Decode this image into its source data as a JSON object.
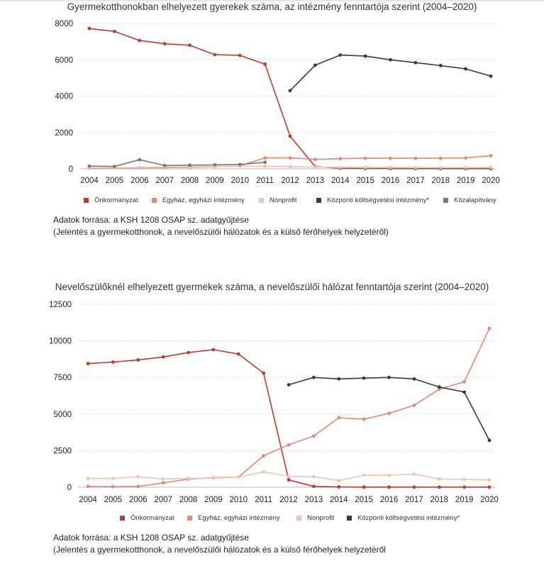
{
  "colors": {
    "onkormanyzat": "#c0392b",
    "egyhaz": "#e08a73",
    "nonprofit": "#f2c3b2",
    "kozponti": "#3a3a3a",
    "kozalapitvany": "#777777"
  },
  "chart_data": [
    {
      "type": "line",
      "title": "Gyermekotthonokban elhelyezett gyerekek száma, az intézmény fenntartója szerint (2004–2020)",
      "xlabel": "",
      "ylabel": "",
      "categories": [
        "2004",
        "2005",
        "2006",
        "2007",
        "2008",
        "2009",
        "2010",
        "2011",
        "2012",
        "2013",
        "2014",
        "2015",
        "2016",
        "2017",
        "2018",
        "2019",
        "2020"
      ],
      "ylim": [
        0,
        8000
      ],
      "yticks": [
        0,
        2000,
        4000,
        6000,
        8000
      ],
      "yticklabels": [
        "0",
        "2000",
        "4000",
        "6000",
        "8000"
      ],
      "grid": true,
      "legend_position": "bottom",
      "series": [
        {
          "name": "Önkormányzat",
          "color": "#c0392b",
          "values": [
            7720,
            7560,
            7060,
            6880,
            6800,
            6280,
            6240,
            5760,
            1800,
            120,
            30,
            20,
            15,
            12,
            12,
            10,
            10
          ]
        },
        {
          "name": "Egyház, egyházi intézmény",
          "color": "#e08a73",
          "values": [
            30,
            40,
            50,
            60,
            80,
            120,
            160,
            600,
            600,
            520,
            560,
            580,
            580,
            580,
            580,
            600,
            720
          ]
        },
        {
          "name": "Nonprofit",
          "color": "#f2c3b2",
          "values": [
            60,
            60,
            80,
            100,
            110,
            130,
            140,
            140,
            120,
            90,
            80,
            80,
            80,
            70,
            70,
            70,
            80
          ]
        },
        {
          "name": "Központi költségvetési intézmény*",
          "color": "#3a3a3a",
          "values": [
            null,
            null,
            null,
            null,
            null,
            null,
            null,
            null,
            4300,
            5700,
            6260,
            6200,
            6000,
            5840,
            5680,
            5500,
            5100
          ]
        },
        {
          "name": "Közalapítvány",
          "color": "#777777",
          "values": [
            150,
            130,
            500,
            180,
            200,
            220,
            240,
            360,
            null,
            null,
            null,
            null,
            null,
            null,
            null,
            null,
            null
          ]
        }
      ],
      "source_lines": [
        "Adatok forrása: a KSH 1208 OSAP sz. adatgyűjtése",
        "(Jelentés a gyermekotthonok, a nevelőszülői hálózatok és a külső férőhelyek helyzetéről)"
      ]
    },
    {
      "type": "line",
      "title": "Nevelőszülőknél elhelyezett gyermekek száma, a nevelőszülői hálózat fenntartója szerint (2004–2020)",
      "xlabel": "",
      "ylabel": "",
      "categories": [
        "2004",
        "2005",
        "2006",
        "2007",
        "2008",
        "2009",
        "2010",
        "2011",
        "2012",
        "2013",
        "2014",
        "2015",
        "2016",
        "2017",
        "2018",
        "2019",
        "2020"
      ],
      "ylim": [
        0,
        12500
      ],
      "yticks": [
        0,
        2500,
        5000,
        7500,
        10000,
        12500
      ],
      "yticklabels": [
        "0",
        "2500",
        "5000",
        "7500",
        "10000",
        "12500"
      ],
      "grid": true,
      "legend_position": "bottom",
      "series": [
        {
          "name": "Önkormányzat",
          "color": "#c0392b",
          "values": [
            8450,
            8550,
            8700,
            8900,
            9200,
            9400,
            9100,
            7800,
            500,
            60,
            20,
            10,
            10,
            10,
            10,
            10,
            10
          ]
        },
        {
          "name": "Egyház, egyházi intézmény",
          "color": "#e08a73",
          "values": [
            60,
            40,
            60,
            300,
            550,
            650,
            700,
            2150,
            2900,
            3500,
            4750,
            4650,
            5050,
            5600,
            6700,
            7200,
            10850
          ]
        },
        {
          "name": "Nonprofit",
          "color": "#f2c3b2",
          "values": [
            600,
            600,
            720,
            560,
            600,
            620,
            700,
            1050,
            750,
            720,
            450,
            820,
            820,
            900,
            560,
            540,
            500
          ]
        },
        {
          "name": "Központi költségvetési intézmény*",
          "color": "#3a3a3a",
          "values": [
            null,
            null,
            null,
            null,
            null,
            null,
            null,
            null,
            7000,
            7500,
            7400,
            7450,
            7500,
            7400,
            6850,
            6500,
            3200
          ]
        }
      ],
      "source_lines": [
        "Adatok forrása: a KSH 1208 OSAP sz. adatgyűjtése",
        "(Jelentés a gyermekotthonok, a nevelőszülői hálózatok és a külső férőhelyek helyzetéről"
      ]
    }
  ]
}
